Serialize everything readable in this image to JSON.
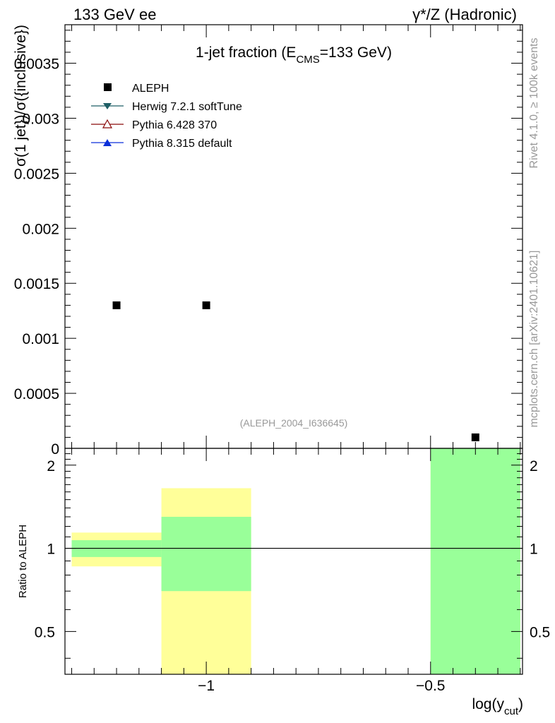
{
  "header": {
    "left": "133 GeV ee",
    "right": "γ*/Z (Hadronic)"
  },
  "side_labels": {
    "rivet": "Rivet 4.1.0, ≥ 100k events",
    "mcplots": "mcplots.cern.ch [arXiv:2401.10621]"
  },
  "colors": {
    "aleph": "#000000",
    "herwig": "#1f5f66",
    "pythia6": "#8b0a0a",
    "pythia8": "#0b2fd9",
    "band_stat": "#99ff99",
    "band_total": "#ffff99"
  },
  "chart_data": [
    {
      "type": "scatter",
      "title_main": "1-jet fraction (E",
      "title_sub": "CMS",
      "title_end": "=133 GeV)",
      "ylabel": "σ(1 jet})/σ({inclusive})",
      "xlabel_main": "log(y",
      "xlabel_sub": "cut",
      "xlabel_end": ")",
      "xlim": [
        -1.315,
        -0.295
      ],
      "ylim": [
        0,
        0.00385
      ],
      "yticks": [
        0,
        0.0005,
        0.001,
        0.0015,
        0.002,
        0.0025,
        0.003,
        0.0035
      ],
      "ytick_labels": [
        "0",
        "0.0005",
        "0.001",
        "0.0015",
        "0.002",
        "0.0025",
        "0.003",
        "0.0035"
      ],
      "watermark": "(ALEPH_2004_I636645)",
      "legend": [
        {
          "name": "ALEPH",
          "marker": "square"
        },
        {
          "name": "Herwig 7.2.1 softTune",
          "marker": "triangle-down"
        },
        {
          "name": "Pythia 6.428 370",
          "marker": "triangle-open"
        },
        {
          "name": "Pythia 8.315 default",
          "marker": "triangle-up"
        }
      ],
      "series": [
        {
          "name": "ALEPH",
          "x": [
            -1.2,
            -1.0,
            -0.4
          ],
          "y": [
            0.0013,
            0.0013,
            0.0001
          ]
        }
      ]
    },
    {
      "type": "area",
      "ylabel": "Ratio to ALEPH",
      "xlim": [
        -1.315,
        -0.295
      ],
      "ylim": [
        0.35,
        2.3
      ],
      "yticks": [
        0.5,
        1,
        2
      ],
      "ytick_labels": [
        "0.5",
        "1",
        "2"
      ],
      "xticks": [
        -1,
        -0.5
      ],
      "xtick_labels": [
        "−1",
        "−0.5"
      ],
      "bins": [
        {
          "lo": -1.3,
          "hi": -1.1,
          "stat_lo": 0.93,
          "stat_hi": 1.07,
          "tot_lo": 0.86,
          "tot_hi": 1.14
        },
        {
          "lo": -1.1,
          "hi": -0.9,
          "stat_lo": 0.7,
          "stat_hi": 1.3,
          "tot_lo": 0.35,
          "tot_hi": 1.65
        },
        {
          "lo": -0.5,
          "hi": -0.3,
          "stat_lo": 0.35,
          "stat_hi": 2.3,
          "tot_lo": 0.35,
          "tot_hi": 2.3
        }
      ],
      "reference_line": 1
    }
  ]
}
